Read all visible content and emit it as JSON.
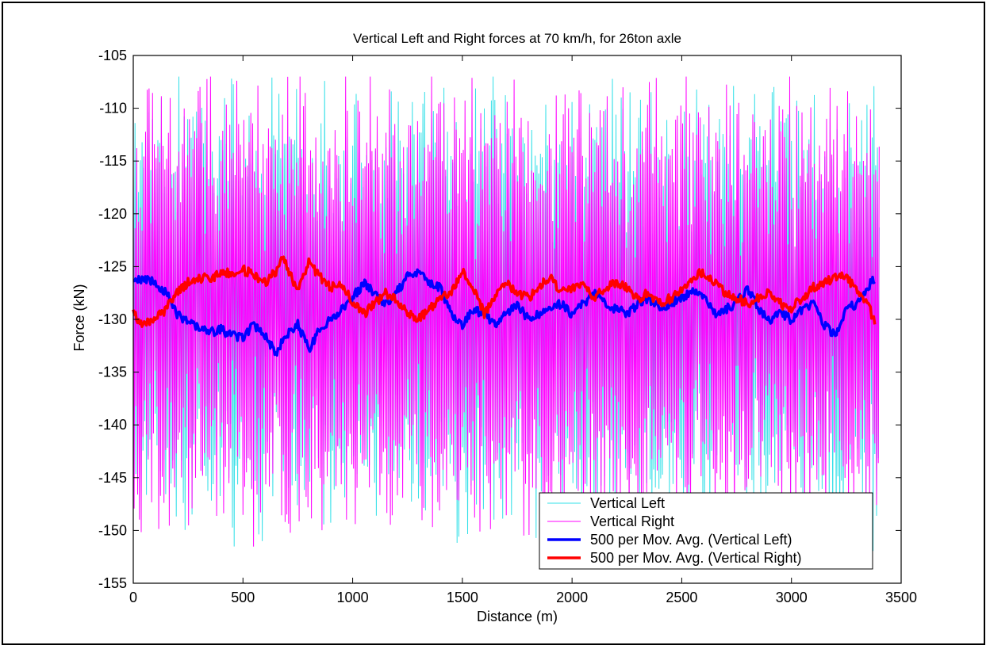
{
  "chart_data": {
    "type": "line",
    "title": "Vertical Left and Right forces at 70 km/h, for 26ton axle",
    "xlabel": "Distance (m)",
    "ylabel": "Force (kN)",
    "xlim": [
      0,
      3500
    ],
    "ylim": [
      -155,
      -105
    ],
    "xticks": [
      0,
      500,
      1000,
      1500,
      2000,
      2500,
      3000,
      3500
    ],
    "yticks": [
      -155,
      -150,
      -145,
      -140,
      -135,
      -130,
      -125,
      -120,
      -115,
      -110,
      -105
    ],
    "grid": false,
    "legend_position": "bottom-right",
    "series": [
      {
        "name": "Vertical Left",
        "color": "#33e0e8",
        "style": "thin",
        "x_range": [
          0,
          3400
        ],
        "approx_center": -129,
        "approx_min": -154,
        "approx_max": -107
      },
      {
        "name": "Vertical Right",
        "color": "#ff00ff",
        "style": "thin",
        "x_range": [
          0,
          3400
        ],
        "approx_center": -129,
        "approx_min": -154,
        "approx_max": -107
      },
      {
        "name": "500 per Mov. Avg. (Vertical Left)",
        "color": "#0000ff",
        "style": "thick",
        "points": [
          [
            0,
            -126.5
          ],
          [
            50,
            -126.2
          ],
          [
            100,
            -126.5
          ],
          [
            150,
            -127.5
          ],
          [
            200,
            -129.5
          ],
          [
            250,
            -130.2
          ],
          [
            300,
            -130.8
          ],
          [
            350,
            -131.2
          ],
          [
            400,
            -131.0
          ],
          [
            450,
            -131.5
          ],
          [
            500,
            -131.8
          ],
          [
            550,
            -130.5
          ],
          [
            600,
            -131.5
          ],
          [
            650,
            -133.2
          ],
          [
            700,
            -131.5
          ],
          [
            750,
            -130.5
          ],
          [
            800,
            -132.8
          ],
          [
            850,
            -131.0
          ],
          [
            900,
            -130.0
          ],
          [
            950,
            -129.0
          ],
          [
            1000,
            -128.0
          ],
          [
            1050,
            -126.5
          ],
          [
            1100,
            -127.5
          ],
          [
            1150,
            -128.5
          ],
          [
            1200,
            -127.5
          ],
          [
            1250,
            -126.0
          ],
          [
            1300,
            -125.5
          ],
          [
            1350,
            -126.5
          ],
          [
            1400,
            -127.0
          ],
          [
            1450,
            -129.5
          ],
          [
            1500,
            -130.5
          ],
          [
            1550,
            -129.0
          ],
          [
            1600,
            -129.5
          ],
          [
            1650,
            -130.5
          ],
          [
            1700,
            -129.5
          ],
          [
            1750,
            -128.5
          ],
          [
            1800,
            -130.0
          ],
          [
            1850,
            -129.5
          ],
          [
            1900,
            -129.0
          ],
          [
            1950,
            -128.5
          ],
          [
            2000,
            -129.5
          ],
          [
            2050,
            -128.5
          ],
          [
            2100,
            -127.5
          ],
          [
            2150,
            -128.5
          ],
          [
            2200,
            -129.0
          ],
          [
            2250,
            -129.5
          ],
          [
            2300,
            -128.5
          ],
          [
            2350,
            -128.0
          ],
          [
            2400,
            -129.0
          ],
          [
            2450,
            -128.5
          ],
          [
            2500,
            -128.0
          ],
          [
            2550,
            -127.5
          ],
          [
            2600,
            -128.0
          ],
          [
            2650,
            -129.5
          ],
          [
            2700,
            -129.0
          ],
          [
            2750,
            -128.5
          ],
          [
            2800,
            -127.0
          ],
          [
            2850,
            -129.0
          ],
          [
            2900,
            -130.0
          ],
          [
            2950,
            -129.5
          ],
          [
            3000,
            -130.0
          ],
          [
            3050,
            -129.0
          ],
          [
            3100,
            -128.5
          ],
          [
            3150,
            -130.5
          ],
          [
            3200,
            -131.5
          ],
          [
            3250,
            -129.0
          ],
          [
            3300,
            -128.5
          ],
          [
            3350,
            -127.0
          ],
          [
            3380,
            -126.0
          ]
        ]
      },
      {
        "name": "500 per Mov. Avg. (Vertical Right)",
        "color": "#ff0000",
        "style": "thick",
        "points": [
          [
            0,
            -129.5
          ],
          [
            50,
            -130.5
          ],
          [
            100,
            -130.0
          ],
          [
            150,
            -129.0
          ],
          [
            200,
            -127.5
          ],
          [
            250,
            -126.5
          ],
          [
            300,
            -126.2
          ],
          [
            350,
            -126.0
          ],
          [
            400,
            -125.8
          ],
          [
            450,
            -125.5
          ],
          [
            500,
            -125.3
          ],
          [
            550,
            -125.8
          ],
          [
            600,
            -126.5
          ],
          [
            650,
            -125.5
          ],
          [
            680,
            -124.0
          ],
          [
            700,
            -125.0
          ],
          [
            750,
            -127.5
          ],
          [
            800,
            -124.5
          ],
          [
            850,
            -126.0
          ],
          [
            900,
            -127.0
          ],
          [
            950,
            -126.5
          ],
          [
            1000,
            -128.5
          ],
          [
            1050,
            -129.5
          ],
          [
            1100,
            -128.5
          ],
          [
            1150,
            -127.5
          ],
          [
            1200,
            -128.0
          ],
          [
            1250,
            -129.5
          ],
          [
            1300,
            -130.0
          ],
          [
            1350,
            -129.0
          ],
          [
            1400,
            -128.0
          ],
          [
            1450,
            -127.5
          ],
          [
            1500,
            -125.5
          ],
          [
            1550,
            -127.0
          ],
          [
            1600,
            -129.5
          ],
          [
            1650,
            -128.0
          ],
          [
            1700,
            -126.5
          ],
          [
            1750,
            -127.5
          ],
          [
            1800,
            -128.0
          ],
          [
            1850,
            -127.0
          ],
          [
            1900,
            -126.0
          ],
          [
            1950,
            -127.5
          ],
          [
            2000,
            -127.0
          ],
          [
            2050,
            -126.5
          ],
          [
            2100,
            -128.0
          ],
          [
            2150,
            -127.0
          ],
          [
            2200,
            -126.5
          ],
          [
            2250,
            -127.0
          ],
          [
            2300,
            -128.0
          ],
          [
            2350,
            -127.5
          ],
          [
            2400,
            -128.5
          ],
          [
            2450,
            -128.0
          ],
          [
            2500,
            -127.0
          ],
          [
            2550,
            -126.0
          ],
          [
            2600,
            -125.5
          ],
          [
            2650,
            -126.5
          ],
          [
            2700,
            -127.5
          ],
          [
            2750,
            -128.0
          ],
          [
            2800,
            -128.5
          ],
          [
            2850,
            -128.0
          ],
          [
            2900,
            -127.5
          ],
          [
            2950,
            -128.5
          ],
          [
            3000,
            -129.0
          ],
          [
            3050,
            -128.0
          ],
          [
            3100,
            -127.0
          ],
          [
            3150,
            -126.5
          ],
          [
            3200,
            -126.0
          ],
          [
            3250,
            -125.8
          ],
          [
            3300,
            -127.5
          ],
          [
            3350,
            -128.5
          ],
          [
            3380,
            -130.5
          ]
        ]
      }
    ]
  }
}
